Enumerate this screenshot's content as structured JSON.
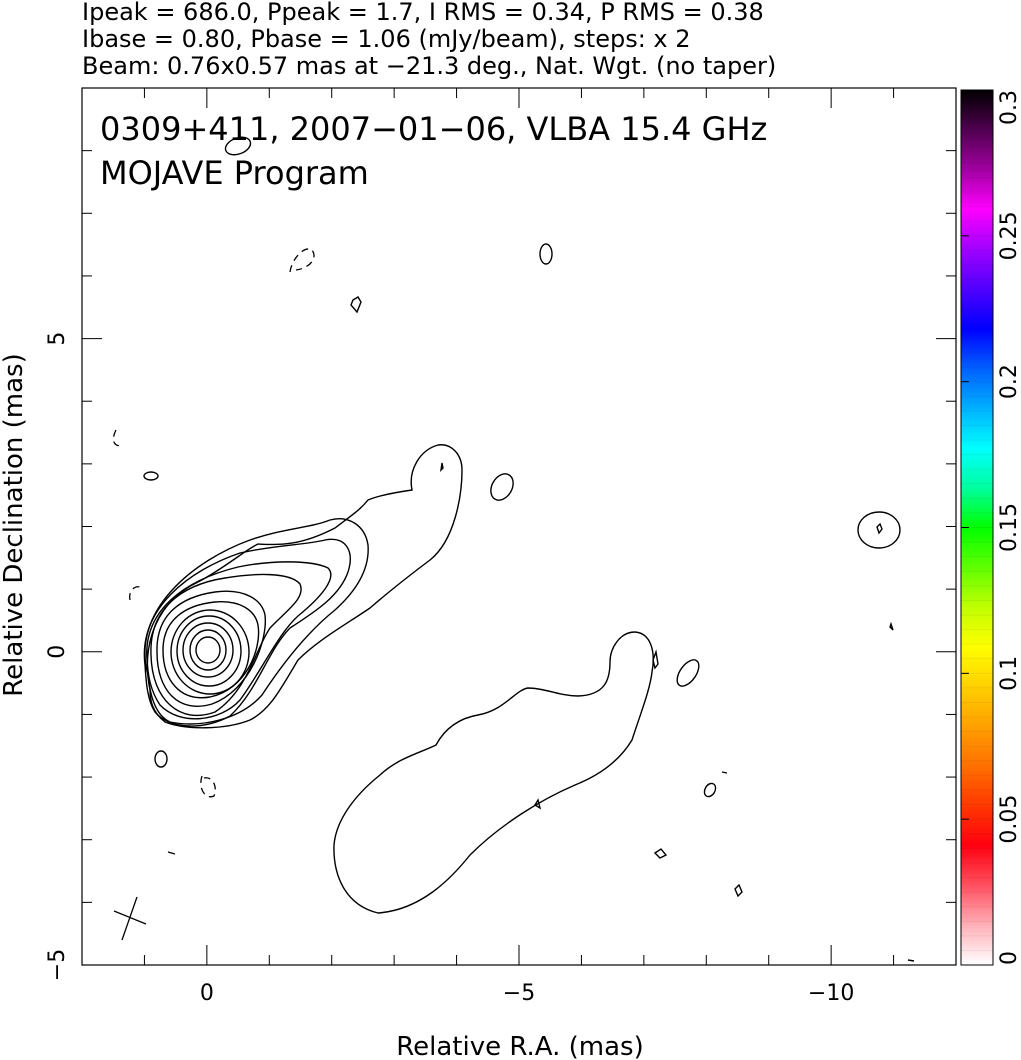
{
  "header": {
    "line1": "Ipeak = 686.0, Ppeak = 1.7, I RMS = 0.34, P RMS = 0.38",
    "line2": "Ibase = 0.80, Pbase = 1.06 (mJy/beam), steps: x 2",
    "line3": "Beam: 0.76x0.57 mas at −21.3 deg., Nat. Wgt. (no taper)"
  },
  "chart_data": {
    "type": "contour",
    "title": "0309+411, 2007−01−06, VLBA 15.4 GHz",
    "subtitle": "MOJAVE Program",
    "xlabel": "Relative R.A. (mas)",
    "ylabel": "Relative Declination (mas)",
    "xlim": [
      2.0,
      -12.0
    ],
    "ylim": [
      -5.0,
      9.0
    ],
    "x_ticks": [
      0,
      -5,
      -10
    ],
    "x_tick_labels": [
      "0",
      "−5",
      "−10"
    ],
    "y_ticks": [
      -5,
      0,
      5
    ],
    "y_tick_labels": [
      "−5",
      "0",
      "5"
    ],
    "core": {
      "x": 0.0,
      "y": 0.0
    },
    "contour_levels_mjy_per_beam": {
      "base": 0.8,
      "step_factor": 2
    },
    "beam": {
      "major_mas": 0.76,
      "minor_mas": 0.57,
      "pa_deg": -21.3
    },
    "colorbar": {
      "min": 0,
      "max": 0.3,
      "ticks": [
        0,
        0.05,
        0.1,
        0.15,
        0.2,
        0.25,
        0.3
      ],
      "tick_labels": [
        "0",
        "0.05",
        "0.1",
        "0.15",
        "0.2",
        "0.25",
        "0.3"
      ],
      "colors": [
        "#ffffff",
        "#ffb0b8",
        "#ff5060",
        "#ff0010",
        "#ff3800",
        "#ff7000",
        "#ffa000",
        "#ffd000",
        "#ffff00",
        "#c0ff00",
        "#60ff00",
        "#00ff00",
        "#00ffa0",
        "#00ffff",
        "#00b0ff",
        "#0060ff",
        "#0000ff",
        "#5000ff",
        "#a000ff",
        "#ff00ff",
        "#a000a0",
        "#500050",
        "#000000"
      ]
    }
  }
}
